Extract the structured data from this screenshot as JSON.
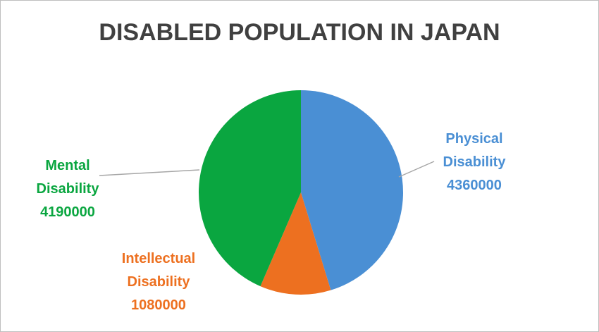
{
  "chart_data": {
    "type": "pie",
    "title": "DISABLED POPULATION IN JAPAN",
    "categories": [
      "Physical Disability",
      "Intellectual Disability",
      "Mental Disability"
    ],
    "values": [
      4360000,
      1080000,
      4190000
    ],
    "colors": [
      "#4a8fd4",
      "#ed7020",
      "#0aa640"
    ]
  }
}
